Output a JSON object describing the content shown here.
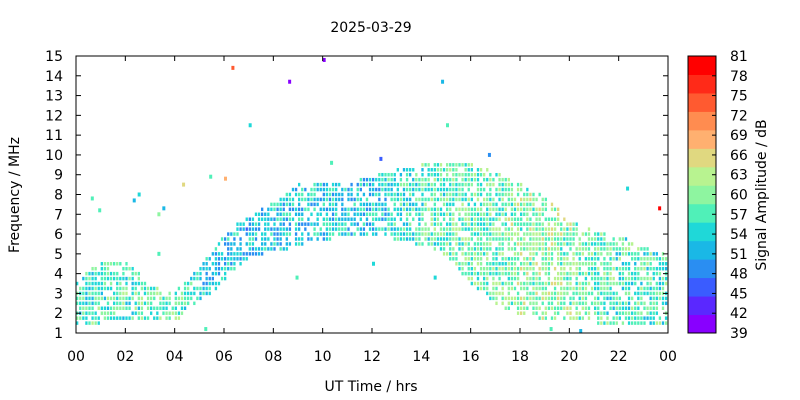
{
  "chart_data": {
    "type": "heatmap",
    "title": "2025-03-29",
    "xlabel": "UT Time / hrs",
    "ylabel": "Frequency / MHz",
    "colorbar_label": "Signal Amplitude / dB",
    "xlim": [
      0,
      24
    ],
    "ylim": [
      1,
      15
    ],
    "x_tick_labels": [
      "00",
      "02",
      "04",
      "06",
      "08",
      "10",
      "12",
      "14",
      "16",
      "18",
      "20",
      "22",
      "00"
    ],
    "y_ticks": [
      1,
      2,
      3,
      4,
      5,
      6,
      7,
      8,
      9,
      10,
      11,
      12,
      13,
      14,
      15
    ],
    "colorbar_ticks": [
      39,
      42,
      45,
      48,
      51,
      54,
      57,
      60,
      63,
      66,
      69,
      72,
      75,
      78,
      81
    ],
    "colorbar_colors": [
      "#8800ff",
      "#5a28ff",
      "#3a5cff",
      "#2a8ef2",
      "#1ab8e6",
      "#1fd8d8",
      "#50f0b8",
      "#8ef5a0",
      "#b8f390",
      "#e0d880",
      "#ffb070",
      "#ff8c50",
      "#ff5a30",
      "#ff2a18",
      "#ff0000"
    ],
    "grid": false,
    "envelope": {
      "description_hidden": true,
      "hours": [
        0,
        1,
        2,
        3,
        4,
        5,
        6,
        7,
        8,
        9,
        10,
        11,
        12,
        13,
        14,
        15,
        16,
        17,
        18,
        19,
        20,
        21,
        22,
        23,
        24
      ],
      "fmin_MHz": [
        1.6,
        1.6,
        1.7,
        1.7,
        1.7,
        2.8,
        3.6,
        5.0,
        5.2,
        5.5,
        5.8,
        6.0,
        6.0,
        5.8,
        5.5,
        5.0,
        3.5,
        2.5,
        2.0,
        1.8,
        1.7,
        1.6,
        1.6,
        1.6,
        1.6
      ],
      "fmax_MHz": [
        3.5,
        4.6,
        4.6,
        3.2,
        3.0,
        4.2,
        6.0,
        6.8,
        7.5,
        8.4,
        8.4,
        8.5,
        8.8,
        9.2,
        9.4,
        9.4,
        9.4,
        9.0,
        8.4,
        7.8,
        6.6,
        6.0,
        5.8,
        5.2,
        4.8
      ],
      "amplitude_dB_typical": [
        56,
        57,
        57,
        58,
        58,
        53,
        53,
        52,
        53,
        53,
        54,
        53,
        53,
        55,
        57,
        58,
        58,
        59,
        60,
        61,
        60,
        58,
        57,
        57,
        57
      ]
    },
    "outliers": [
      {
        "hour": 6.3,
        "freq_MHz": 14.4,
        "amp_dB": 73
      },
      {
        "hour": 8.6,
        "freq_MHz": 13.7,
        "amp_dB": 40
      },
      {
        "hour": 10.0,
        "freq_MHz": 14.8,
        "amp_dB": 40
      },
      {
        "hour": 14.8,
        "freq_MHz": 13.7,
        "amp_dB": 51
      },
      {
        "hour": 15.0,
        "freq_MHz": 11.5,
        "amp_dB": 56
      },
      {
        "hour": 7.0,
        "freq_MHz": 11.5,
        "amp_dB": 55
      },
      {
        "hour": 10.3,
        "freq_MHz": 9.6,
        "amp_dB": 56
      },
      {
        "hour": 12.3,
        "freq_MHz": 9.8,
        "amp_dB": 45
      },
      {
        "hour": 16.7,
        "freq_MHz": 10.0,
        "amp_dB": 48
      },
      {
        "hour": 23.6,
        "freq_MHz": 7.3,
        "amp_dB": 81
      },
      {
        "hour": 22.3,
        "freq_MHz": 8.3,
        "amp_dB": 54
      },
      {
        "hour": 4.3,
        "freq_MHz": 8.5,
        "amp_dB": 66
      },
      {
        "hour": 5.4,
        "freq_MHz": 8.9,
        "amp_dB": 57
      },
      {
        "hour": 6.0,
        "freq_MHz": 8.8,
        "amp_dB": 69
      },
      {
        "hour": 0.6,
        "freq_MHz": 7.8,
        "amp_dB": 57
      },
      {
        "hour": 0.9,
        "freq_MHz": 7.2,
        "amp_dB": 57
      },
      {
        "hour": 2.3,
        "freq_MHz": 7.7,
        "amp_dB": 51
      },
      {
        "hour": 2.5,
        "freq_MHz": 8.0,
        "amp_dB": 54
      },
      {
        "hour": 3.5,
        "freq_MHz": 7.3,
        "amp_dB": 51
      },
      {
        "hour": 3.3,
        "freq_MHz": 7.0,
        "amp_dB": 60
      },
      {
        "hour": 3.3,
        "freq_MHz": 5.0,
        "amp_dB": 57
      },
      {
        "hour": 8.9,
        "freq_MHz": 3.8,
        "amp_dB": 57
      },
      {
        "hour": 14.5,
        "freq_MHz": 3.8,
        "amp_dB": 54
      },
      {
        "hour": 12.0,
        "freq_MHz": 4.5,
        "amp_dB": 54
      },
      {
        "hour": 5.2,
        "freq_MHz": 1.2,
        "amp_dB": 57
      },
      {
        "hour": 19.2,
        "freq_MHz": 1.2,
        "amp_dB": 57
      },
      {
        "hour": 20.4,
        "freq_MHz": 1.1,
        "amp_dB": 51
      }
    ]
  }
}
